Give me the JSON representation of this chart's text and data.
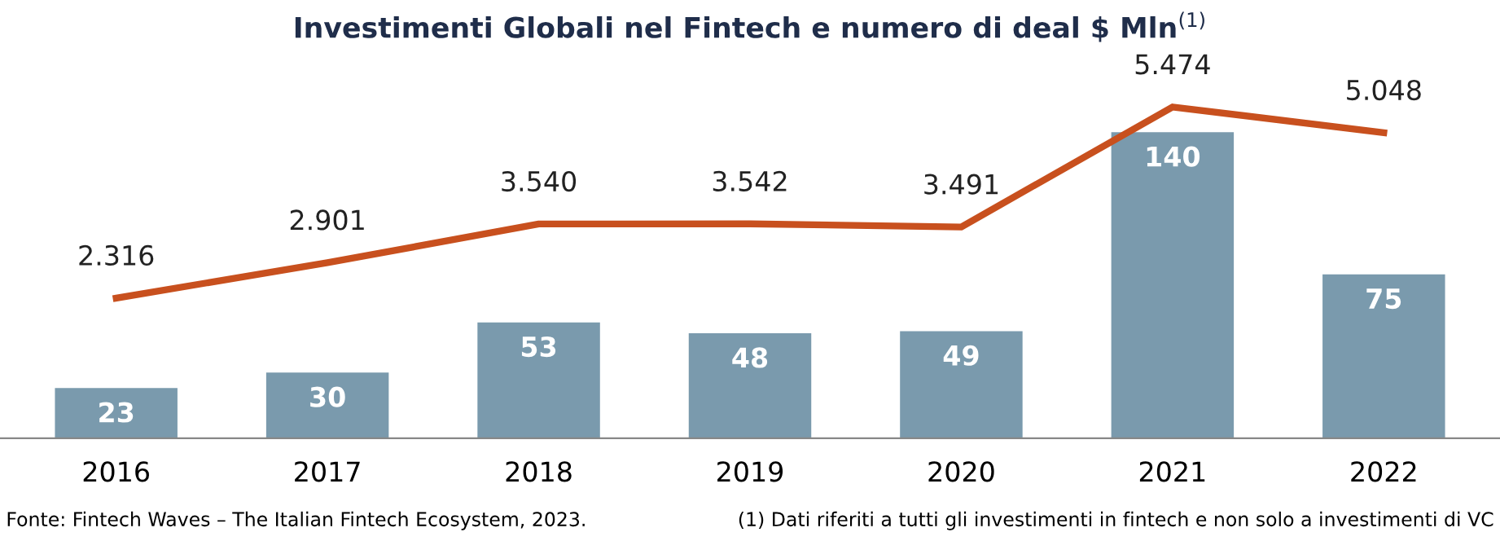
{
  "chart_data": {
    "type": "bar",
    "title": "Investimenti Globali nel Fintech e numero di deal $ Mln$^{(1)}$",
    "categories": [
      "2016",
      "2017",
      "2018",
      "2019",
      "2020",
      "2021",
      "2022"
    ],
    "series": [
      {
        "color": "#7a9aad",
        "values": [
          23,
          30,
          53,
          48,
          49,
          140,
          75
        ],
        "value_labels": [
          "23",
          "30",
          "53",
          "48",
          "49",
          "140",
          "75"
        ]
      },
      {
        "type": "line",
        "axis": "y2",
        "color": "#c8501e",
        "values": [
          2316,
          2901,
          3540,
          3542,
          3491,
          5474,
          5048
        ],
        "value_labels": [
          "2.316",
          "2.901",
          "3.540",
          "3.542",
          "3.491",
          "5.474",
          "5.048"
        ]
      }
    ],
    "tick_labels": "x",
    "grid": false,
    "legend": false,
    "marker": "none",
    "line_style": "solid",
    "annotations": [
      "Fonte: Fintech Waves – The Italian Fintech Ecosystem, 2023.",
      "(1) Dati riferiti a tutti gli investimenti in fintech e non solo a investimenti di VC"
    ]
  }
}
